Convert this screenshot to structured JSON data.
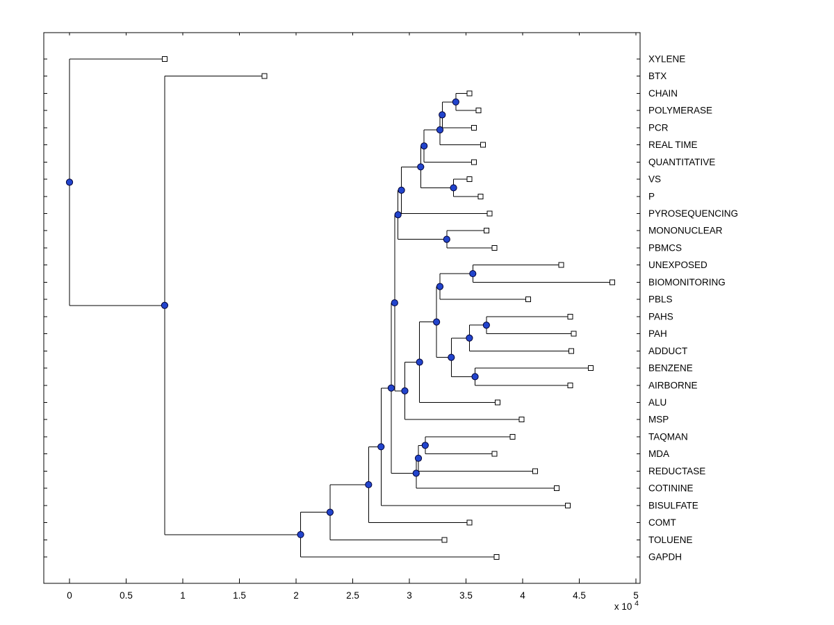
{
  "figure": {
    "background_color": "#ffffff",
    "plot_background_color": "#ffffff"
  },
  "chart_data": {
    "type": "dendrogram",
    "orientation": "horizontal-leaves-right",
    "title": "",
    "x_axis": {
      "tick_values": [
        0,
        0.5,
        1,
        1.5,
        2,
        2.5,
        3,
        3.5,
        4,
        4.5,
        5
      ],
      "tick_labels": [
        "0",
        "0.5",
        "1",
        "1.5",
        "2",
        "2.5",
        "3",
        "3.5",
        "4",
        "4.5",
        "5"
      ],
      "multiplier_text": "x 10",
      "multiplier_exponent": "4",
      "xlim": [
        -0.23,
        5.04
      ]
    },
    "leaf_labels": [
      "XYLENE",
      "BTX",
      "CHAIN",
      "POLYMERASE",
      "PCR",
      "REAL TIME",
      "QUANTITATIVE",
      "VS",
      "P",
      "PYROSEQUENCING",
      "MONONUCLEAR",
      "PBMCS",
      "UNEXPOSED",
      "BIOMONITORING",
      "PBLS",
      "PAHS",
      "PAH",
      "ADDUCT",
      "BENZENE",
      "AIRBORNE",
      "ALU",
      "MSP",
      "TAQMAN",
      "MDA",
      "REDUCTASE",
      "COTININE",
      "BISULFATE",
      "COMT",
      "TOLUENE",
      "GAPDH"
    ],
    "colors": {
      "edge": "#000000",
      "branch_node_fill": "#2244cc",
      "branch_node_stroke": "#000033",
      "leaf_marker_fill": "#ffffff",
      "leaf_marker_stroke": "#000000",
      "axis": "#000000"
    },
    "tree": {
      "d": 0.0,
      "children": [
        {
          "name": "XYLENE",
          "d": 0.84
        },
        {
          "d": 0.84,
          "children": [
            {
              "name": "BTX",
              "d": 1.72
            },
            {
              "d": 2.04,
              "children": [
                {
                  "d": 2.3,
                  "children": [
                    {
                      "d": 2.64,
                      "children": [
                        {
                          "d": 2.75,
                          "children": [
                            {
                              "d": 2.84,
                              "children": [
                                {
                                  "d": 2.87,
                                  "children": [
                                    {
                                      "d": 2.9,
                                      "children": [
                                        {
                                          "d": 2.93,
                                          "children": [
                                            {
                                              "d": 3.1,
                                              "children": [
                                                {
                                                  "d": 3.13,
                                                  "children": [
                                                    {
                                                      "d": 3.27,
                                                      "children": [
                                                        {
                                                          "d": 3.29,
                                                          "children": [
                                                            {
                                                              "d": 3.41,
                                                              "children": [
                                                                {
                                                                  "name": "CHAIN",
                                                                  "d": 3.53
                                                                },
                                                                {
                                                                  "name": "POLYMERASE",
                                                                  "d": 3.61
                                                                }
                                                              ]
                                                            },
                                                            {
                                                              "name": "PCR",
                                                              "d": 3.57
                                                            }
                                                          ]
                                                        },
                                                        {
                                                          "name": "REAL TIME",
                                                          "d": 3.65
                                                        }
                                                      ]
                                                    },
                                                    {
                                                      "name": "QUANTITATIVE",
                                                      "d": 3.57
                                                    }
                                                  ]
                                                },
                                                {
                                                  "d": 3.39,
                                                  "children": [
                                                    {
                                                      "name": "VS",
                                                      "d": 3.53
                                                    },
                                                    {
                                                      "name": "P",
                                                      "d": 3.63
                                                    }
                                                  ]
                                                }
                                              ]
                                            },
                                            {
                                              "name": "PYROSEQUENCING",
                                              "d": 3.71
                                            }
                                          ]
                                        },
                                        {
                                          "d": 3.33,
                                          "children": [
                                            {
                                              "name": "MONONUCLEAR",
                                              "d": 3.68
                                            },
                                            {
                                              "name": "PBMCS",
                                              "d": 3.75
                                            }
                                          ]
                                        }
                                      ]
                                    },
                                    {
                                      "d": 2.96,
                                      "children": [
                                        {
                                          "d": 3.09,
                                          "children": [
                                            {
                                              "d": 3.24,
                                              "children": [
                                                {
                                                  "d": 3.27,
                                                  "children": [
                                                    {
                                                      "d": 3.56,
                                                      "children": [
                                                        {
                                                          "name": "UNEXPOSED",
                                                          "d": 4.34
                                                        },
                                                        {
                                                          "name": "BIOMONITORING",
                                                          "d": 4.79
                                                        }
                                                      ]
                                                    },
                                                    {
                                                      "name": "PBLS",
                                                      "d": 4.05
                                                    }
                                                  ]
                                                },
                                                {
                                                  "d": 3.37,
                                                  "children": [
                                                    {
                                                      "d": 3.53,
                                                      "children": [
                                                        {
                                                          "d": 3.68,
                                                          "children": [
                                                            {
                                                              "name": "PAHS",
                                                              "d": 4.42
                                                            },
                                                            {
                                                              "name": "PAH",
                                                              "d": 4.45
                                                            }
                                                          ]
                                                        },
                                                        {
                                                          "name": "ADDUCT",
                                                          "d": 4.43
                                                        }
                                                      ]
                                                    },
                                                    {
                                                      "d": 3.58,
                                                      "children": [
                                                        {
                                                          "name": "BENZENE",
                                                          "d": 4.6
                                                        },
                                                        {
                                                          "name": "AIRBORNE",
                                                          "d": 4.42
                                                        }
                                                      ]
                                                    }
                                                  ]
                                                }
                                              ]
                                            },
                                            {
                                              "name": "ALU",
                                              "d": 3.78
                                            }
                                          ]
                                        },
                                        {
                                          "name": "MSP",
                                          "d": 3.99
                                        }
                                      ]
                                    }
                                  ]
                                },
                                {
                                  "d": 3.06,
                                  "children": [
                                    {
                                      "d": 3.08,
                                      "children": [
                                        {
                                          "d": 3.14,
                                          "children": [
                                            {
                                              "name": "TAQMAN",
                                              "d": 3.91
                                            },
                                            {
                                              "name": "MDA",
                                              "d": 3.75
                                            }
                                          ]
                                        },
                                        {
                                          "name": "REDUCTASE",
                                          "d": 4.11
                                        }
                                      ]
                                    },
                                    {
                                      "name": "COTININE",
                                      "d": 4.3
                                    }
                                  ]
                                }
                              ]
                            },
                            {
                              "name": "BISULFATE",
                              "d": 4.4
                            }
                          ]
                        },
                        {
                          "name": "COMT",
                          "d": 3.53
                        }
                      ]
                    },
                    {
                      "name": "TOLUENE",
                      "d": 3.31
                    }
                  ]
                },
                {
                  "name": "GAPDH",
                  "d": 3.77
                }
              ]
            }
          ]
        }
      ]
    }
  }
}
